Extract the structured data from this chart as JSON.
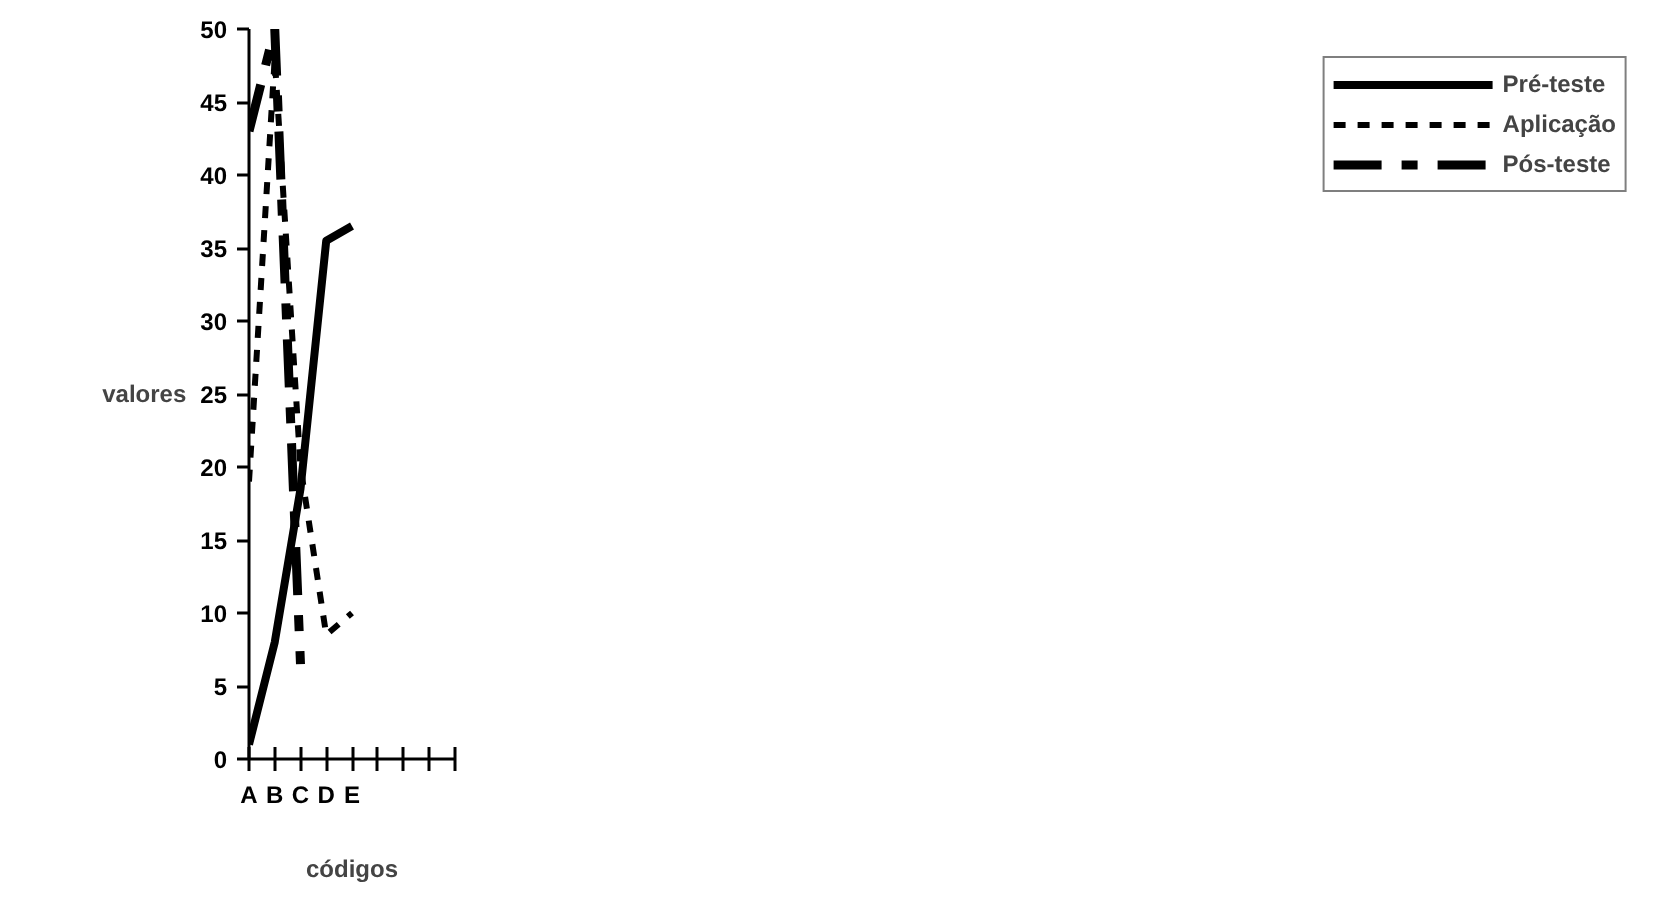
{
  "chart_data": {
    "type": "line",
    "xlabel": "códigos",
    "ylabel": "valores",
    "categories": [
      "A",
      "B",
      "C",
      "D",
      "E",
      null,
      null,
      null,
      null
    ],
    "series": [
      {
        "name": "Pré-teste",
        "color": "#000000",
        "line_style": "solid",
        "values": [
          1,
          8,
          18.5,
          35.5,
          36.5,
          null,
          null,
          null,
          null
        ]
      },
      {
        "name": "Aplicação",
        "color": "#000000",
        "line_style": "dashed",
        "values": [
          19,
          48,
          20,
          8.5,
          10,
          null,
          null,
          null,
          null
        ]
      },
      {
        "name": "Pós-teste",
        "color": "#000000",
        "line_style": "dashdot",
        "values": [
          43,
          50,
          6.5,
          null,
          null,
          null,
          null,
          null,
          null
        ]
      }
    ],
    "ylim": [
      0,
      50
    ],
    "yticks": [
      0,
      5,
      10,
      15,
      20,
      25,
      30,
      35,
      40,
      45,
      50
    ],
    "grid": false,
    "legend": "right",
    "marker": "none"
  }
}
